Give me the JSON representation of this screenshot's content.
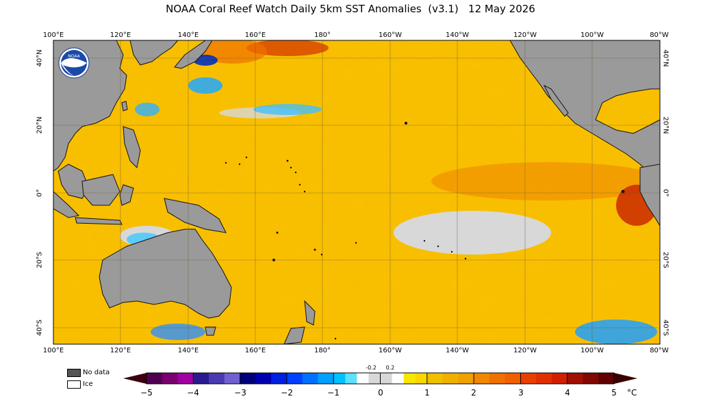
{
  "title": "NOAA Coral Reef Watch Daily 5km SST Anomalies  (v3.1)   12 May 2026",
  "logo_text": "NOAA",
  "lon_ticks": [
    "100°E",
    "120°E",
    "140°E",
    "160°E",
    "180°",
    "160°W",
    "140°W",
    "120°W",
    "100°W",
    "80°W"
  ],
  "lat_ticks": [
    "40°N",
    "20°N",
    "0°",
    "20°S",
    "40°S"
  ],
  "legend": {
    "no_data": "No data",
    "ice": "Ice",
    "no_data_color": "#555555",
    "ice_color": "#ffffff"
  },
  "colorbar": {
    "ticks": [
      "−5",
      "−4",
      "−3",
      "−2",
      "−1",
      "0",
      "1",
      "2",
      "3",
      "4",
      "5"
    ],
    "near_zero_ticks": [
      "-0.2",
      "0.2"
    ],
    "unit": "°C",
    "colors": [
      "#3a0018",
      "#600050",
      "#9a0098",
      "#3a2aa0",
      "#6a58c8",
      "#00008c",
      "#0010c8",
      "#0050ff",
      "#0090ff",
      "#00d0ff",
      "#ffffff",
      "#d8d8d8",
      "#ffffff",
      "#f8e000",
      "#f0c000",
      "#f0a000",
      "#f08000",
      "#f06000",
      "#e83000",
      "#c82000",
      "#901000",
      "#500800"
    ]
  },
  "colors": {
    "land": "#9a9a9a",
    "ocean_base": "#f8b800",
    "gridline": "#6a5a3a"
  }
}
